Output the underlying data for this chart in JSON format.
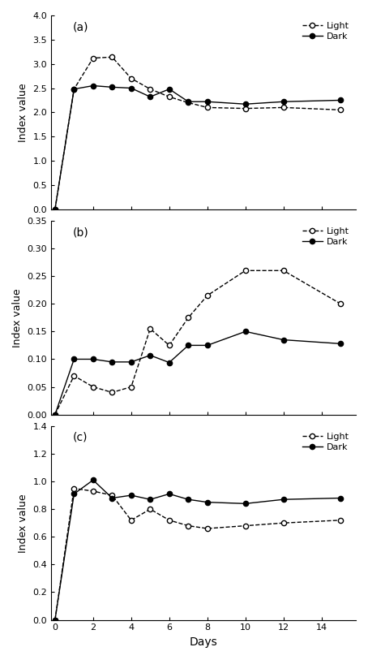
{
  "x_days": [
    0,
    1,
    2,
    3,
    4,
    5,
    6,
    7,
    8,
    10,
    12,
    15
  ],
  "panel_a": {
    "label": "(a)",
    "ylim": [
      0.0,
      4.0
    ],
    "yticks": [
      0.0,
      0.5,
      1.0,
      1.5,
      2.0,
      2.5,
      3.0,
      3.5,
      4.0
    ],
    "ylabel": "Index value",
    "light": [
      0.0,
      2.48,
      3.12,
      3.14,
      2.7,
      2.48,
      2.32,
      2.2,
      2.1,
      2.08,
      2.1,
      2.05
    ],
    "dark": [
      0.0,
      2.48,
      2.55,
      2.52,
      2.5,
      2.32,
      2.48,
      2.22,
      2.22,
      2.17,
      2.22,
      2.25
    ]
  },
  "panel_b": {
    "label": "(b)",
    "ylim": [
      0.0,
      0.35
    ],
    "yticks": [
      0.0,
      0.05,
      0.1,
      0.15,
      0.2,
      0.25,
      0.3,
      0.35
    ],
    "ylabel": "Index value",
    "light": [
      0.0,
      0.07,
      0.05,
      0.04,
      0.05,
      0.155,
      0.125,
      0.175,
      0.215,
      0.26,
      0.26,
      0.2
    ],
    "dark": [
      0.0,
      0.1,
      0.1,
      0.095,
      0.095,
      0.107,
      0.094,
      0.125,
      0.125,
      0.15,
      0.135,
      0.128
    ]
  },
  "panel_c": {
    "label": "(c)",
    "ylim": [
      0.0,
      1.4
    ],
    "yticks": [
      0.0,
      0.2,
      0.4,
      0.6,
      0.8,
      1.0,
      1.2,
      1.4
    ],
    "ylabel": "Index value",
    "light": [
      0.0,
      0.95,
      0.93,
      0.9,
      0.72,
      0.8,
      0.72,
      0.68,
      0.66,
      0.68,
      0.7,
      0.72
    ],
    "dark": [
      0.0,
      0.91,
      1.01,
      0.88,
      0.9,
      0.87,
      0.91,
      0.87,
      0.85,
      0.84,
      0.87,
      0.88
    ]
  },
  "xlabel": "Days",
  "xticks": [
    0,
    2,
    4,
    6,
    8,
    10,
    12,
    14
  ],
  "xlim": [
    -0.2,
    15.8
  ],
  "light_color": "#000000",
  "dark_color": "#000000",
  "light_marker": "o",
  "dark_marker": "o",
  "light_linestyle": "--",
  "dark_linestyle": "-",
  "light_markerfacecolor": "white",
  "dark_markerfacecolor": "black",
  "figsize": [
    4.54,
    8.13
  ],
  "dpi": 100
}
